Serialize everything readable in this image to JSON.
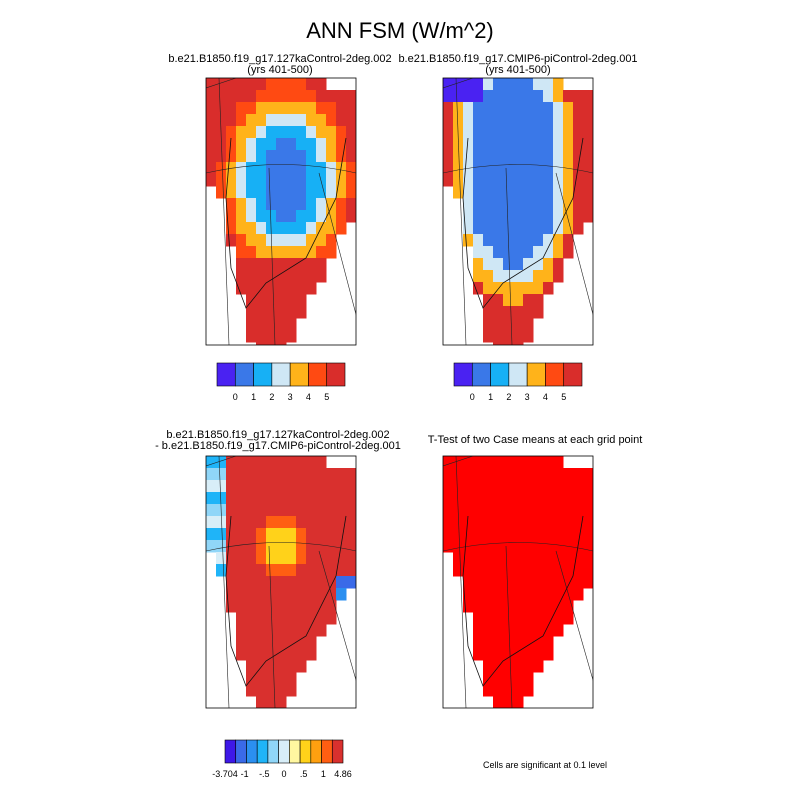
{
  "title": "ANN FSM (W/m^2)",
  "panels": [
    {
      "title": [
        "b.e21.B1850.f19_g17.127kaControl-2deg.002",
        "(yrs 401-500)"
      ],
      "colorbar": {
        "colors": [
          "#4a22f2",
          "#3a78e8",
          "#17b0f5",
          "#cfe7f5",
          "#ffb31a",
          "#ff4a12",
          "#d92d2b"
        ],
        "labels": [
          "0",
          "1",
          "2",
          "3",
          "4",
          "5"
        ]
      }
    },
    {
      "title": [
        "b.e21.B1850.f19_g17.CMIP6-piControl-2deg.001",
        "(yrs 401-500)"
      ],
      "colorbar": {
        "colors": [
          "#4a22f2",
          "#3a78e8",
          "#17b0f5",
          "#cfe7f5",
          "#ffb31a",
          "#ff4a12",
          "#d92d2b"
        ],
        "labels": [
          "0",
          "1",
          "2",
          "3",
          "4",
          "5"
        ]
      }
    },
    {
      "title": [
        "b.e21.B1850.f19_g17.127kaControl-2deg.002",
        "- b.e21.B1850.f19_g17.CMIP6-piControl-2deg.001"
      ],
      "colorbar": {
        "colors": [
          "#3e18e8",
          "#3a6ae8",
          "#2b8ff0",
          "#1fb4f8",
          "#90d6f8",
          "#d8eef8",
          "#fff7a0",
          "#ffd21a",
          "#ffa010",
          "#ff5e12",
          "#d9302e"
        ],
        "labels": [
          "-3.704",
          "-1",
          "-.5",
          "0",
          ".5",
          "1",
          "4.86"
        ]
      }
    },
    {
      "title": [
        "T-Test of two Case means at each grid point"
      ],
      "fill_color": "#ff0000",
      "note": "Cells are significant at 0.1 level"
    }
  ]
}
